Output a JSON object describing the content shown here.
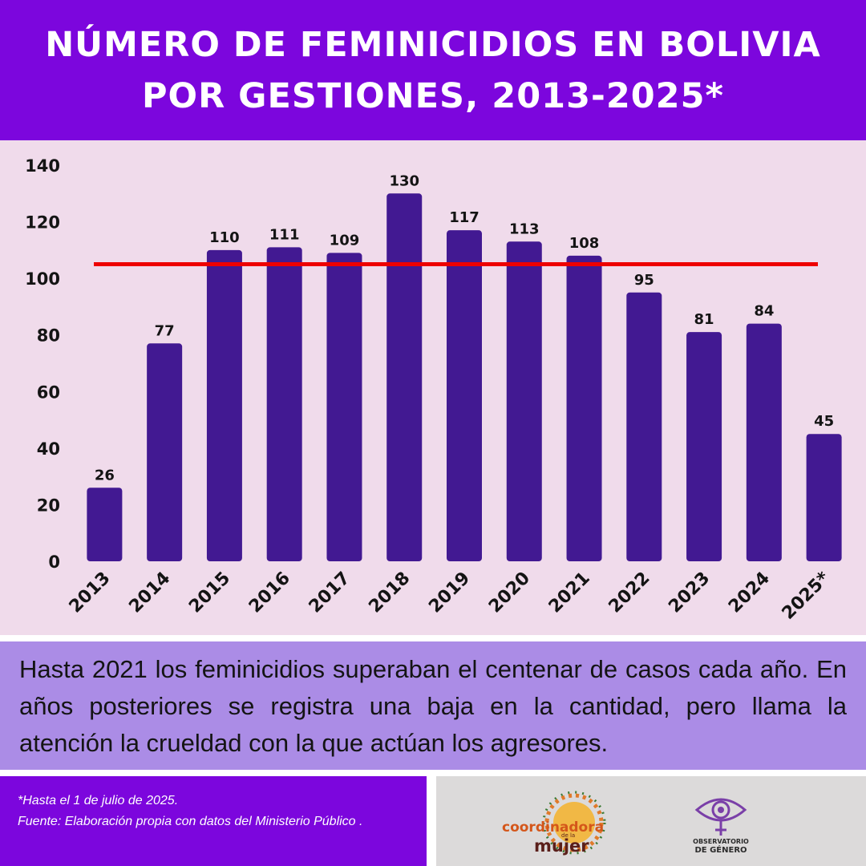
{
  "header": {
    "title_line1": "NÚMERO DE FEMINICIDIOS EN BOLIVIA",
    "title_line2": "POR GESTIONES, 2013-2025*"
  },
  "chart_data": {
    "type": "bar",
    "categories": [
      "2013",
      "2014",
      "2015",
      "2016",
      "2017",
      "2018",
      "2019",
      "2020",
      "2021",
      "2022",
      "2023",
      "2024",
      "2025*"
    ],
    "values": [
      26,
      77,
      110,
      111,
      109,
      130,
      117,
      113,
      108,
      95,
      81,
      84,
      45
    ],
    "ylim": [
      0,
      140
    ],
    "yticks": [
      0,
      20,
      40,
      60,
      80,
      100,
      120,
      140
    ],
    "reference_line": 105,
    "grid": false,
    "colors": {
      "bar": "#421992",
      "reference_line": "#ee0000",
      "background": "#f0dbeb",
      "text": "#141414"
    }
  },
  "note": {
    "text": "Hasta 2021 los feminicidios superaban el centenar de casos cada año. En años posteriores se registra una baja en la cantidad, pero llama la atención la crueldad con la que actúan los agresores."
  },
  "footer": {
    "footnote": "*Hasta el 1 de julio de 2025.",
    "source": "Fuente: Elaboración propia con datos del Ministerio Público ."
  },
  "logos": {
    "coordinadora": {
      "word1": "coordinadora",
      "small": "de la",
      "word2": "mujer"
    },
    "observatorio": {
      "line1": "OBSERVATORIO",
      "line2": "DE GÉNERO"
    }
  },
  "colors": {
    "purple": "#7c06dd",
    "lavender": "#ab8ce6",
    "pink": "#f0dbeb",
    "gray": "#dcdada"
  }
}
